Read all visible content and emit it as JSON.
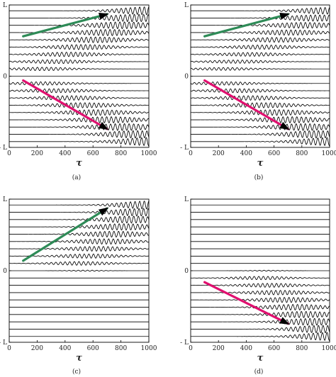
{
  "chart_data": [
    {
      "type": "line",
      "caption": "(a)",
      "xlabel": "τ",
      "xlim": [
        0,
        1000
      ],
      "xticks": [
        "0",
        "200",
        "400",
        "600",
        "800",
        "1000"
      ],
      "yticks": [
        "L",
        "0",
        "- L"
      ],
      "trace_count": 19,
      "center_trace": 9,
      "pattern": "both",
      "arrows": [
        {
          "color": "#2e8b57",
          "from": [
            100,
            0.78
          ],
          "to": [
            700,
            0.935
          ]
        },
        {
          "color": "#e0106f",
          "from": [
            100,
            0.47
          ],
          "to": [
            700,
            0.13
          ]
        }
      ]
    },
    {
      "type": "line",
      "caption": "(b)",
      "xlabel": "τ",
      "xlim": [
        0,
        1000
      ],
      "xticks": [
        "0",
        "200",
        "400",
        "600",
        "800",
        "1000"
      ],
      "yticks": [
        "L",
        "0",
        "- L"
      ],
      "trace_count": 19,
      "center_trace": 9,
      "pattern": "both-decay",
      "arrows": [
        {
          "color": "#2e8b57",
          "from": [
            100,
            0.78
          ],
          "to": [
            700,
            0.935
          ]
        },
        {
          "color": "#e0106f",
          "from": [
            100,
            0.47
          ],
          "to": [
            700,
            0.13
          ]
        }
      ]
    },
    {
      "type": "line",
      "caption": "(c)",
      "xlabel": "τ",
      "xlim": [
        0,
        1000
      ],
      "xticks": [
        "0",
        "200",
        "400",
        "600",
        "800",
        "1000"
      ],
      "yticks": [
        "L",
        "0",
        "- L"
      ],
      "trace_count": 19,
      "center_trace": 9,
      "pattern": "upper",
      "arrows": [
        {
          "color": "#2e8b57",
          "from": [
            100,
            0.57
          ],
          "to": [
            700,
            0.935
          ]
        }
      ]
    },
    {
      "type": "line",
      "caption": "(d)",
      "xlabel": "τ",
      "xlim": [
        0,
        1000
      ],
      "xticks": [
        "0",
        "200",
        "400",
        "600",
        "800",
        "1000"
      ],
      "yticks": [
        "L",
        "0",
        "- L"
      ],
      "trace_count": 19,
      "center_trace": 9,
      "pattern": "lower",
      "arrows": [
        {
          "color": "#e0106f",
          "from": [
            100,
            0.42
          ],
          "to": [
            700,
            0.13
          ]
        }
      ]
    }
  ]
}
